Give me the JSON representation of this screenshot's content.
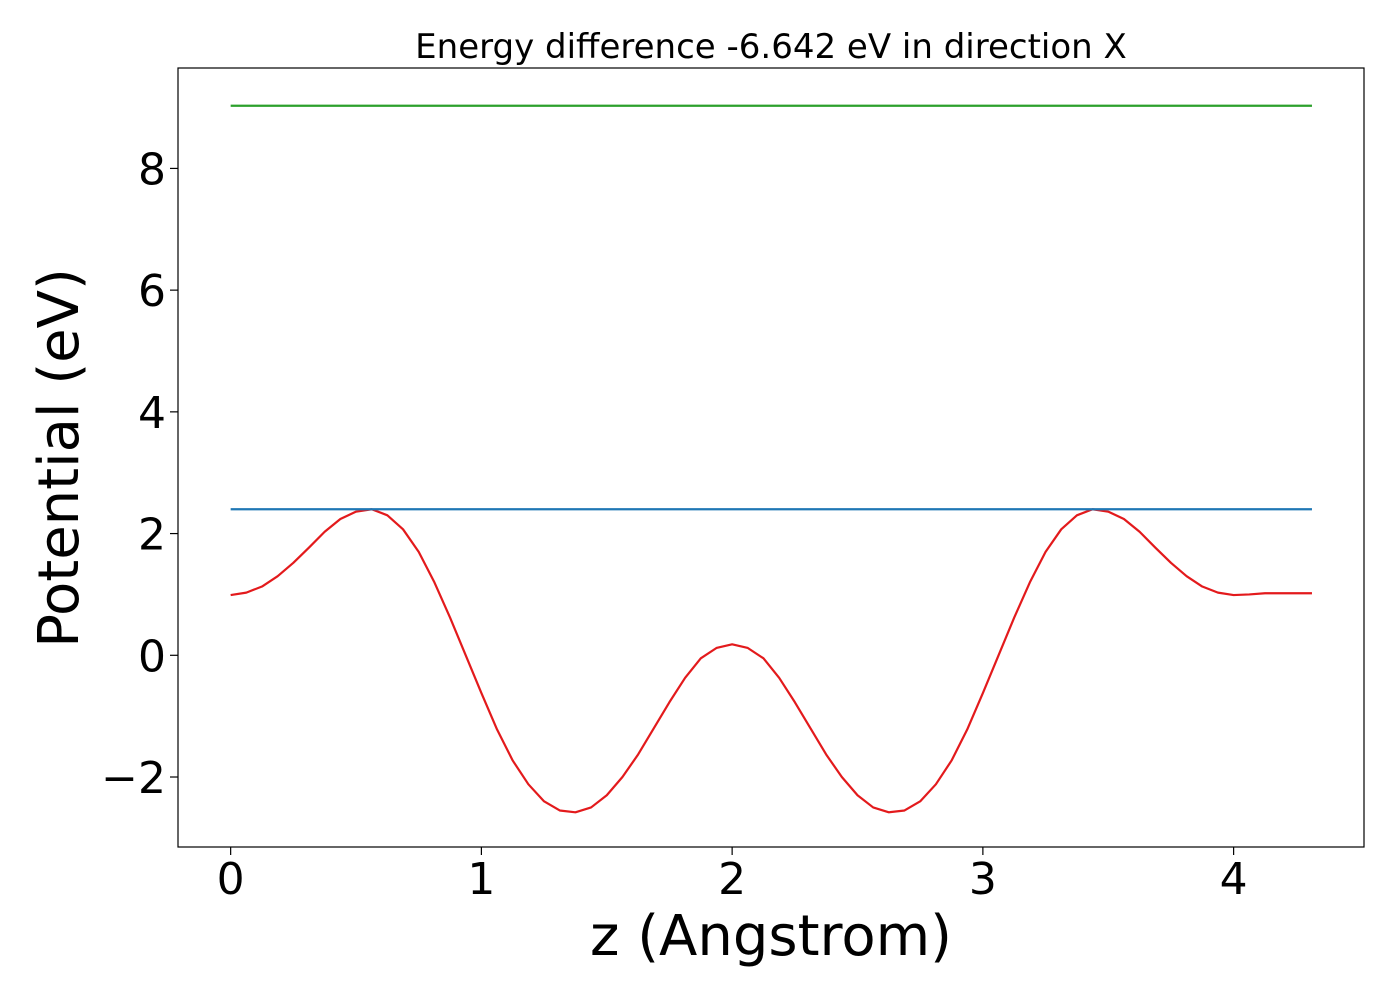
{
  "chart_data": {
    "type": "line",
    "title": "Energy difference -6.642 eV in direction X",
    "xlabel": "z (Angstrom)",
    "ylabel": "Potential (eV)",
    "xlim": [
      -0.21,
      4.52
    ],
    "ylim": [
      -3.15,
      9.65
    ],
    "grid": false,
    "legend": "none",
    "xticks": [
      0,
      1,
      2,
      3,
      4
    ],
    "xtick_labels": [
      "0",
      "1",
      "2",
      "3",
      "4"
    ],
    "yticks": [
      -2,
      0,
      2,
      4,
      6,
      8
    ],
    "ytick_labels": [
      "−2",
      "0",
      "2",
      "4",
      "6",
      "8"
    ],
    "series": [
      {
        "color": "#e31a1c",
        "x": [
          0.0,
          0.0625,
          0.125,
          0.1875,
          0.25,
          0.3125,
          0.375,
          0.4375,
          0.5,
          0.5625,
          0.625,
          0.6875,
          0.75,
          0.8125,
          0.875,
          0.9375,
          1.0,
          1.0625,
          1.125,
          1.1875,
          1.25,
          1.3125,
          1.375,
          1.4375,
          1.5,
          1.5625,
          1.625,
          1.6875,
          1.75,
          1.8125,
          1.875,
          1.9375,
          2.0,
          2.0625,
          2.125,
          2.1875,
          2.25,
          2.3125,
          2.375,
          2.4375,
          2.5,
          2.5625,
          2.625,
          2.6875,
          2.75,
          2.8125,
          2.875,
          2.9375,
          3.0,
          3.0625,
          3.125,
          3.1875,
          3.25,
          3.3125,
          3.375,
          3.4375,
          3.5,
          3.5625,
          3.625,
          3.6875,
          3.75,
          3.8125,
          3.875,
          3.9375,
          4.0,
          4.0625,
          4.125,
          4.1875,
          4.25,
          4.3125
        ],
        "y": [
          0.99,
          1.03,
          1.13,
          1.3,
          1.52,
          1.77,
          2.03,
          2.24,
          2.36,
          2.4,
          2.3,
          2.07,
          1.7,
          1.2,
          0.62,
          0.0,
          -0.62,
          -1.22,
          -1.73,
          -2.12,
          -2.4,
          -2.55,
          -2.58,
          -2.5,
          -2.3,
          -2.0,
          -1.63,
          -1.2,
          -0.77,
          -0.37,
          -0.05,
          0.12,
          0.18,
          0.12,
          -0.05,
          -0.37,
          -0.77,
          -1.2,
          -1.63,
          -2.0,
          -2.3,
          -2.5,
          -2.58,
          -2.55,
          -2.4,
          -2.12,
          -1.73,
          -1.22,
          -0.62,
          0.0,
          0.62,
          1.2,
          1.7,
          2.07,
          2.3,
          2.4,
          2.36,
          2.24,
          2.03,
          1.77,
          1.52,
          1.3,
          1.13,
          1.03,
          0.99,
          1.0,
          1.02,
          1.02,
          1.02,
          1.02
        ]
      },
      {
        "color": "#1f77b4",
        "x": [
          0.0,
          4.3125
        ],
        "y": [
          2.4,
          2.4
        ]
      },
      {
        "color": "#2ca02c",
        "x": [
          0.0,
          4.3125
        ],
        "y": [
          9.03,
          9.03
        ]
      }
    ]
  }
}
